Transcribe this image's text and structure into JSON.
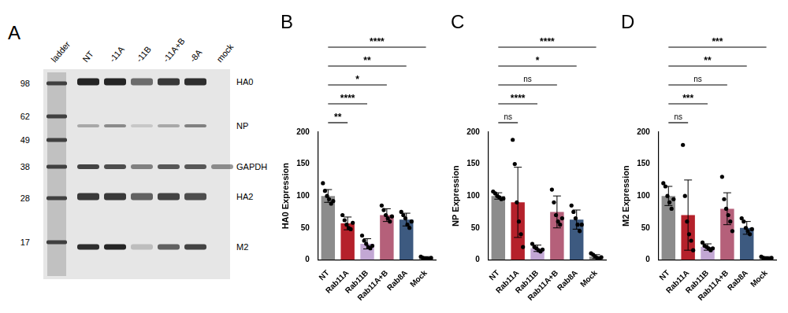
{
  "blot": {
    "panel": "A",
    "ladder": "ladder",
    "lanes": [
      "NT",
      "-11A",
      "-11B",
      "-11A+B",
      "-8A",
      "mock"
    ],
    "markers": [
      98,
      62,
      49,
      38,
      28,
      17
    ],
    "bands": [
      {
        "name": "HA0",
        "intensity": [
          95,
          95,
          60,
          85,
          90,
          0
        ]
      },
      {
        "name": "NP",
        "intensity": [
          30,
          45,
          15,
          30,
          50,
          0
        ]
      },
      {
        "name": "GAPDH",
        "intensity": [
          80,
          75,
          50,
          70,
          70,
          45
        ]
      },
      {
        "name": "HA2",
        "intensity": [
          85,
          85,
          65,
          80,
          75,
          0
        ]
      },
      {
        "name": "M2",
        "intensity": [
          90,
          95,
          20,
          65,
          80,
          0
        ]
      }
    ]
  },
  "chart_data": [
    {
      "panel": "B",
      "type": "bar",
      "ylabel": "HA0 Expression",
      "categories": [
        "NT",
        "Rab11A",
        "Rab11B",
        "Rab11A+B",
        "Rab8A",
        "Mock"
      ],
      "values": [
        100,
        57,
        25,
        70,
        63,
        3
      ],
      "errors": [
        10,
        10,
        8,
        10,
        10,
        2
      ],
      "points": [
        [
          120,
          108,
          100,
          95,
          88,
          92
        ],
        [
          70,
          62,
          55,
          50,
          48,
          58
        ],
        [
          38,
          30,
          25,
          20,
          18,
          22
        ],
        [
          85,
          78,
          70,
          65,
          60,
          68
        ],
        [
          75,
          70,
          65,
          55,
          50,
          60
        ],
        [
          5,
          3,
          2,
          2,
          1,
          3
        ]
      ],
      "colors": [
        "#8c8c8c",
        "#b5212b",
        "#c2a7d4",
        "#b5607a",
        "#3d5a80",
        "#8c8c8c"
      ],
      "ylim": [
        0,
        200
      ],
      "yticks": [
        0,
        50,
        100,
        150,
        200
      ],
      "grid": false,
      "significance": [
        {
          "from": "NT",
          "to": "Rab11A",
          "label": "**"
        },
        {
          "from": "NT",
          "to": "Rab11B",
          "label": "****"
        },
        {
          "from": "NT",
          "to": "Rab11A+B",
          "label": "*"
        },
        {
          "from": "NT",
          "to": "Rab8A",
          "label": "**"
        },
        {
          "from": "NT",
          "to": "Mock",
          "label": "****"
        }
      ]
    },
    {
      "panel": "C",
      "type": "bar",
      "ylabel": "NP Expression",
      "categories": [
        "NT",
        "Rab11A",
        "Rab11B",
        "Rab11A+B",
        "Rab8A",
        "Mock"
      ],
      "values": [
        100,
        90,
        18,
        75,
        63,
        5
      ],
      "errors": [
        5,
        55,
        5,
        25,
        15,
        3
      ],
      "points": [
        [
          107,
          104,
          100,
          98,
          95,
          96
        ],
        [
          188,
          150,
          90,
          60,
          40,
          20
        ],
        [
          25,
          20,
          18,
          15,
          13,
          16
        ],
        [
          110,
          90,
          70,
          60,
          55,
          65
        ],
        [
          85,
          75,
          65,
          55,
          45,
          55
        ],
        [
          10,
          8,
          5,
          3,
          2,
          4
        ]
      ],
      "colors": [
        "#8c8c8c",
        "#b5212b",
        "#c2a7d4",
        "#b5607a",
        "#3d5a80",
        "#8c8c8c"
      ],
      "ylim": [
        0,
        200
      ],
      "yticks": [
        0,
        50,
        100,
        150,
        200
      ],
      "grid": false,
      "significance": [
        {
          "from": "NT",
          "to": "Rab11A",
          "label": "ns"
        },
        {
          "from": "NT",
          "to": "Rab11B",
          "label": "****"
        },
        {
          "from": "NT",
          "to": "Rab11A+B",
          "label": "ns"
        },
        {
          "from": "NT",
          "to": "Rab8A",
          "label": "*"
        },
        {
          "from": "NT",
          "to": "Mock",
          "label": "****"
        }
      ]
    },
    {
      "panel": "D",
      "type": "bar",
      "ylabel": "M2 Expression",
      "categories": [
        "NT",
        "Rab11A",
        "Rab11B",
        "Rab11A+B",
        "Rab8A",
        "Mock"
      ],
      "values": [
        100,
        70,
        20,
        80,
        50,
        3
      ],
      "errors": [
        15,
        55,
        5,
        25,
        10,
        2
      ],
      "points": [
        [
          120,
          115,
          100,
          90,
          80,
          95
        ],
        [
          180,
          100,
          60,
          40,
          30,
          15
        ],
        [
          27,
          22,
          20,
          18,
          15,
          18
        ],
        [
          130,
          95,
          80,
          70,
          60,
          45
        ],
        [
          65,
          60,
          50,
          45,
          40,
          48
        ],
        [
          5,
          3,
          2,
          2,
          1,
          3
        ]
      ],
      "colors": [
        "#8c8c8c",
        "#b5212b",
        "#c2a7d4",
        "#b5607a",
        "#3d5a80",
        "#8c8c8c"
      ],
      "ylim": [
        0,
        200
      ],
      "yticks": [
        0,
        50,
        100,
        150,
        200
      ],
      "grid": false,
      "significance": [
        {
          "from": "NT",
          "to": "Rab11A",
          "label": "ns"
        },
        {
          "from": "NT",
          "to": "Rab11B",
          "label": "***"
        },
        {
          "from": "NT",
          "to": "Rab11A+B",
          "label": "ns"
        },
        {
          "from": "NT",
          "to": "Rab8A",
          "label": "**"
        },
        {
          "from": "NT",
          "to": "Mock",
          "label": "***"
        }
      ]
    }
  ]
}
